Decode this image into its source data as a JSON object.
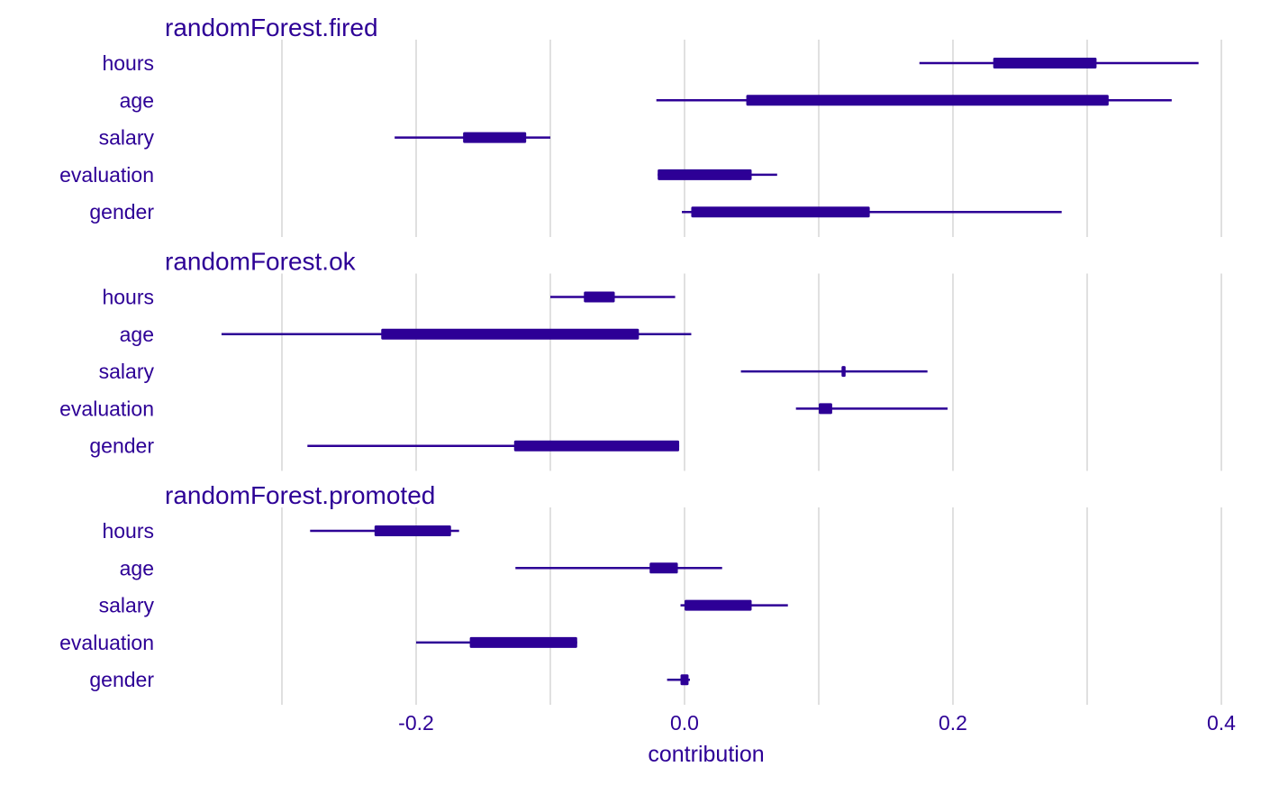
{
  "colors": {
    "accent": "#2d0096",
    "grid": "#e0e0e0",
    "background": "#ffffff"
  },
  "chart_data": {
    "type": "boxplot",
    "xlabel": "contribution",
    "x_ticks": [
      -0.2,
      0.0,
      0.2,
      0.4
    ],
    "x_tick_labels": [
      "-0.2",
      "0.0",
      "0.2",
      "0.4"
    ],
    "x_minor_ticks": [
      -0.3,
      -0.1,
      0.1,
      0.3
    ],
    "xlim": [
      -0.385,
      0.4
    ],
    "grid": true,
    "panels": [
      {
        "title": "randomForest.fired",
        "variables": [
          {
            "name": "hours",
            "whisker_low": 0.175,
            "q1": 0.23,
            "q3": 0.307,
            "whisker_high": 0.383
          },
          {
            "name": "age",
            "whisker_low": -0.021,
            "q1": 0.046,
            "q3": 0.316,
            "whisker_high": 0.363
          },
          {
            "name": "salary",
            "whisker_low": -0.216,
            "q1": -0.165,
            "q3": -0.118,
            "whisker_high": -0.1
          },
          {
            "name": "evaluation",
            "whisker_low": -0.02,
            "q1": -0.02,
            "q3": 0.05,
            "whisker_high": 0.069
          },
          {
            "name": "gender",
            "whisker_low": -0.002,
            "q1": 0.005,
            "q3": 0.138,
            "whisker_high": 0.281
          }
        ]
      },
      {
        "title": "randomForest.ok",
        "variables": [
          {
            "name": "hours",
            "whisker_low": -0.1,
            "q1": -0.075,
            "q3": -0.052,
            "whisker_high": -0.007
          },
          {
            "name": "age",
            "whisker_low": -0.345,
            "q1": -0.226,
            "q3": -0.034,
            "whisker_high": 0.005
          },
          {
            "name": "salary",
            "whisker_low": 0.042,
            "q1": 0.117,
            "q3": 0.12,
            "whisker_high": 0.181
          },
          {
            "name": "evaluation",
            "whisker_low": 0.083,
            "q1": 0.1,
            "q3": 0.11,
            "whisker_high": 0.196
          },
          {
            "name": "gender",
            "whisker_low": -0.281,
            "q1": -0.127,
            "q3": -0.004,
            "whisker_high": -0.004
          }
        ]
      },
      {
        "title": "randomForest.promoted",
        "variables": [
          {
            "name": "hours",
            "whisker_low": -0.279,
            "q1": -0.231,
            "q3": -0.174,
            "whisker_high": -0.168
          },
          {
            "name": "age",
            "whisker_low": -0.126,
            "q1": -0.026,
            "q3": -0.005,
            "whisker_high": 0.028
          },
          {
            "name": "salary",
            "whisker_low": -0.003,
            "q1": 0.0,
            "q3": 0.05,
            "whisker_high": 0.077
          },
          {
            "name": "evaluation",
            "whisker_low": -0.2,
            "q1": -0.16,
            "q3": -0.08,
            "whisker_high": -0.08
          },
          {
            "name": "gender",
            "whisker_low": -0.013,
            "q1": -0.003,
            "q3": 0.003,
            "whisker_high": 0.004
          }
        ]
      }
    ]
  }
}
